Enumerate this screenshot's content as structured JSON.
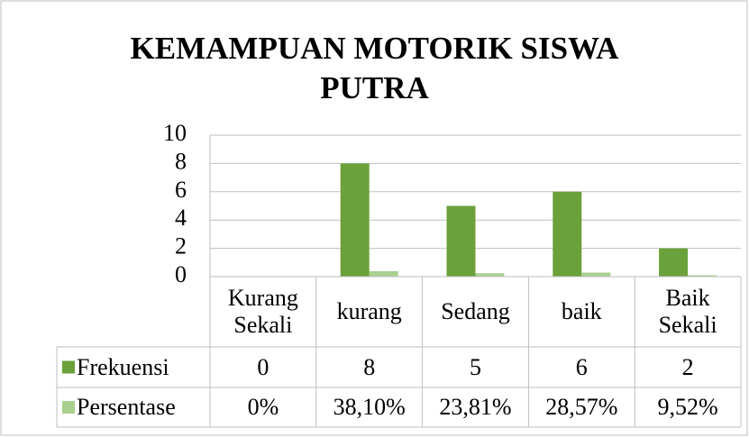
{
  "chart_data": {
    "type": "bar",
    "title": "KEMAMPUAN MOTORIK SISWA PUTRA",
    "categories": [
      "Kurang Sekali",
      "kurang",
      "Sedang",
      "baik",
      "Baik Sekali"
    ],
    "series": [
      {
        "name": "Frekuensi",
        "color": "#6aa13a",
        "values": [
          0,
          8,
          5,
          6,
          2
        ]
      },
      {
        "name": "Persentase",
        "color": "#a9d08e",
        "values": [
          0,
          0.381,
          0.2381,
          0.2857,
          0.0952
        ],
        "value_labels": [
          "0%",
          "38,10%",
          "23,81%",
          "28,57%",
          "9,52%"
        ]
      }
    ],
    "ylim": [
      0,
      10
    ],
    "yticks": [
      0,
      2,
      4,
      6,
      8,
      10
    ],
    "grid": true,
    "data_table": true
  }
}
